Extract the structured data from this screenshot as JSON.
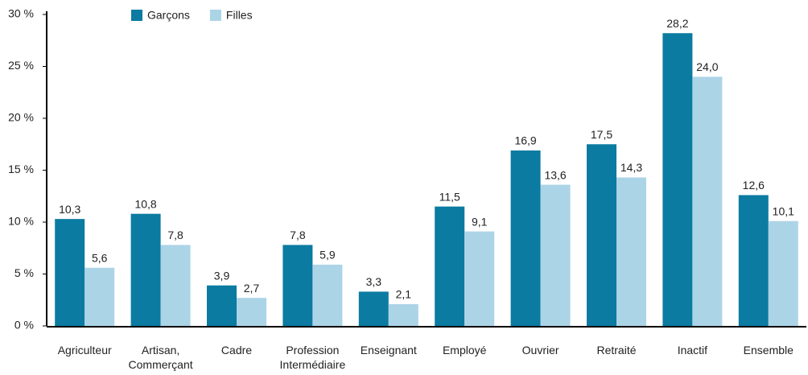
{
  "chart_data": {
    "type": "bar",
    "categories": [
      "Agriculteur",
      "Artisan,\nCommerçant",
      "Cadre",
      "Profession\nIntermédiaire",
      "Enseignant",
      "Employé",
      "Ouvrier",
      "Retraité",
      "Inactif",
      "Ensemble"
    ],
    "series": [
      {
        "name": "Garçons",
        "color": "#0b7ba1",
        "values": [
          10.3,
          10.8,
          3.9,
          7.8,
          3.3,
          11.5,
          16.9,
          17.5,
          28.2,
          12.6
        ],
        "value_labels": [
          "10,3",
          "10,8",
          "3,9",
          "7,8",
          "3,3",
          "11,5",
          "16,9",
          "17,5",
          "28,2",
          "12,6"
        ]
      },
      {
        "name": "Filles",
        "color": "#acd4e7",
        "values": [
          5.6,
          7.8,
          2.7,
          5.9,
          2.1,
          9.1,
          13.6,
          14.3,
          24.0,
          10.1
        ],
        "value_labels": [
          "5,6",
          "7,8",
          "2,7",
          "5,9",
          "2,1",
          "9,1",
          "13,6",
          "14,3",
          "24,0",
          "10,1"
        ]
      }
    ],
    "ylim": [
      0,
      30
    ],
    "yticks": [
      {
        "value": 0,
        "label": "0 %"
      },
      {
        "value": 5,
        "label": "5 %"
      },
      {
        "value": 10,
        "label": "10 %"
      },
      {
        "value": 15,
        "label": "15 %"
      },
      {
        "value": 20,
        "label": "20 %"
      },
      {
        "value": 25,
        "label": "25 %"
      },
      {
        "value": 30,
        "label": "30 %"
      }
    ],
    "grid": false,
    "legend": "top"
  }
}
